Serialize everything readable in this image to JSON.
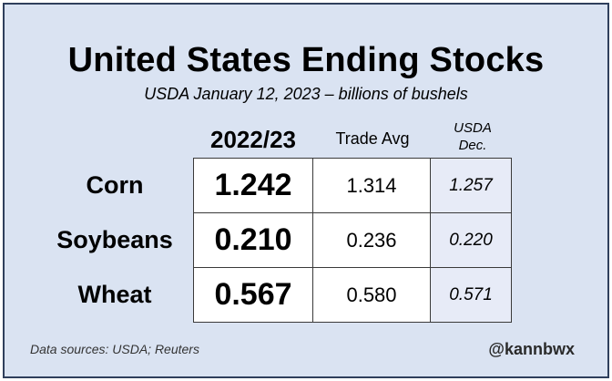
{
  "title": "United States Ending Stocks",
  "subtitle": "USDA January 12, 2023 – billions of bushels",
  "columns": {
    "main": "2022/23",
    "trade": "Trade Avg",
    "usda_line1": "USDA",
    "usda_line2": "Dec."
  },
  "chart_data": {
    "type": "table",
    "title": "United States Ending Stocks",
    "subtitle": "USDA January 12, 2023 – billions of bushels",
    "columns": [
      "2022/23",
      "Trade Avg",
      "USDA Dec."
    ],
    "rows": [
      {
        "label": "Corn",
        "values": [
          "1.242",
          "1.314",
          "1.257"
        ]
      },
      {
        "label": "Soybeans",
        "values": [
          "0.210",
          "0.236",
          "0.220"
        ]
      },
      {
        "label": "Wheat",
        "values": [
          "0.567",
          "0.580",
          "0.571"
        ]
      }
    ]
  },
  "footer": {
    "source": "Data sources: USDA; Reuters",
    "handle": "@kannbwx"
  }
}
